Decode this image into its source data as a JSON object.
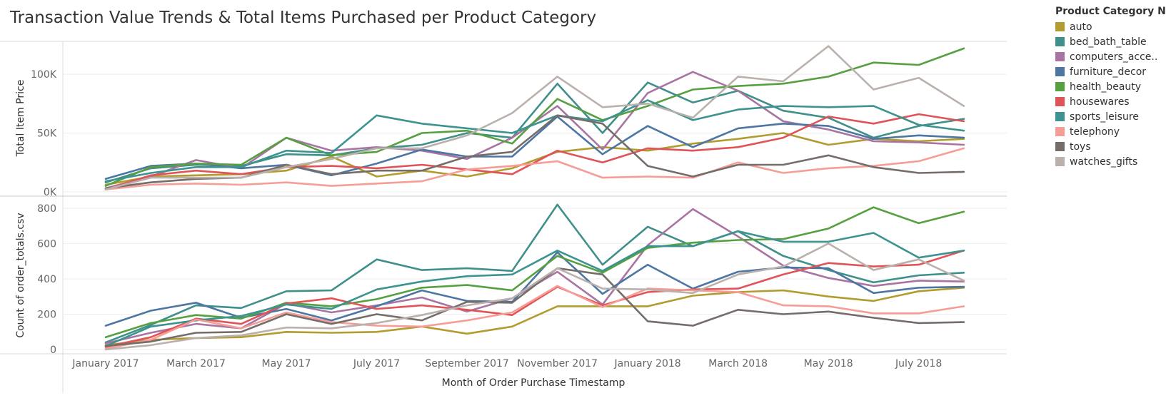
{
  "title": "Transaction Value Trends & Total Items Purchased per Product Category",
  "chart_data": [
    {
      "type": "line",
      "ylabel": "Total Item Price",
      "ytick_labels": [
        "0K",
        "50K",
        "100K"
      ],
      "yticks": [
        0,
        50000,
        100000
      ],
      "ylim": [
        -3000,
        130000
      ],
      "grid": true,
      "x": [
        "2017-01",
        "2017-02",
        "2017-03",
        "2017-04",
        "2017-05",
        "2017-06",
        "2017-07",
        "2017-08",
        "2017-09",
        "2017-10",
        "2017-11",
        "2017-12",
        "2018-01",
        "2018-02",
        "2018-03",
        "2018-04",
        "2018-05",
        "2018-06",
        "2018-07",
        "2018-08"
      ],
      "series": [
        {
          "name": "auto",
          "values": [
            6000,
            13000,
            14000,
            15000,
            18000,
            30000,
            13000,
            18000,
            13000,
            20000,
            34000,
            38000,
            35000,
            41000,
            45000,
            50000,
            40000,
            45000,
            43000,
            45000
          ]
        },
        {
          "name": "bed_bath_table",
          "values": [
            8000,
            20000,
            23000,
            22000,
            32000,
            31000,
            37000,
            40000,
            50000,
            46000,
            92000,
            50000,
            93000,
            76000,
            86000,
            69000,
            63000,
            46000,
            56000,
            62000
          ]
        },
        {
          "name": "computers_accessories",
          "values": [
            3000,
            13000,
            27000,
            20000,
            46000,
            35000,
            38000,
            35000,
            28000,
            46000,
            73000,
            36000,
            84000,
            102000,
            86000,
            60000,
            53000,
            43000,
            42000,
            40000
          ]
        },
        {
          "name": "furniture_decor",
          "values": [
            11000,
            22000,
            24000,
            20000,
            23000,
            14000,
            24000,
            36000,
            30000,
            30000,
            64000,
            32000,
            56000,
            38000,
            54000,
            58000,
            56000,
            45000,
            48000,
            46000
          ]
        },
        {
          "name": "health_beauty",
          "values": [
            5000,
            21000,
            24000,
            23000,
            46000,
            31000,
            34000,
            50000,
            52000,
            41000,
            79000,
            61000,
            73000,
            87000,
            90000,
            92000,
            98000,
            110000,
            108000,
            122000
          ]
        },
        {
          "name": "housewares",
          "values": [
            2000,
            14000,
            18000,
            15000,
            21000,
            22000,
            20000,
            23000,
            19000,
            15000,
            35000,
            25000,
            37000,
            35000,
            38000,
            46000,
            64000,
            58000,
            66000,
            60000
          ]
        },
        {
          "name": "sports_leisure",
          "values": [
            9000,
            16000,
            21000,
            21000,
            35000,
            33000,
            65000,
            58000,
            54000,
            50000,
            65000,
            60000,
            78000,
            61000,
            70000,
            73000,
            72000,
            73000,
            57000,
            52000
          ]
        },
        {
          "name": "telephony",
          "values": [
            2000,
            6000,
            7000,
            6000,
            8000,
            5000,
            7000,
            9000,
            19000,
            22000,
            26000,
            12000,
            13000,
            12000,
            25000,
            16000,
            20000,
            22000,
            26000,
            37000
          ]
        },
        {
          "name": "toys",
          "values": [
            3000,
            8000,
            11000,
            12000,
            23000,
            15000,
            18000,
            18000,
            30000,
            34000,
            65000,
            58000,
            22000,
            13000,
            23000,
            23000,
            31000,
            21000,
            16000,
            17000
          ]
        },
        {
          "name": "watches_gifts",
          "values": [
            2000,
            12000,
            12000,
            12000,
            21000,
            28000,
            37000,
            37000,
            48000,
            67000,
            98000,
            72000,
            75000,
            63000,
            98000,
            94000,
            124000,
            87000,
            97000,
            73000
          ]
        }
      ]
    },
    {
      "type": "line",
      "ylabel": "Count of order_totals.csv",
      "xlabel": "Month of Order Purchase Timestamp",
      "ytick_labels": [
        "0",
        "200",
        "400",
        "600",
        "800"
      ],
      "yticks": [
        0,
        200,
        400,
        600,
        800
      ],
      "ylim": [
        -20,
        860
      ],
      "grid": true,
      "xtick_labels": [
        "January 2017",
        "March 2017",
        "May 2017",
        "July 2017",
        "September 2017",
        "November 2017",
        "January 2018",
        "March 2018",
        "May 2018",
        "July 2018"
      ],
      "x": [
        "2017-01",
        "2017-02",
        "2017-03",
        "2017-04",
        "2017-05",
        "2017-06",
        "2017-07",
        "2017-08",
        "2017-09",
        "2017-10",
        "2017-11",
        "2017-12",
        "2018-01",
        "2018-02",
        "2018-03",
        "2018-04",
        "2018-05",
        "2018-06",
        "2018-07",
        "2018-08"
      ],
      "series": [
        {
          "name": "auto",
          "values": [
            25,
            55,
            65,
            70,
            100,
            95,
            100,
            130,
            90,
            130,
            245,
            245,
            245,
            305,
            325,
            335,
            300,
            275,
            330,
            350
          ]
        },
        {
          "name": "bed_bath_table",
          "values": [
            40,
            140,
            250,
            235,
            330,
            335,
            510,
            450,
            460,
            445,
            820,
            480,
            695,
            585,
            670,
            530,
            450,
            380,
            420,
            435
          ]
        },
        {
          "name": "computers_accessories",
          "values": [
            35,
            95,
            145,
            120,
            260,
            210,
            250,
            295,
            215,
            290,
            440,
            255,
            590,
            795,
            640,
            475,
            405,
            360,
            390,
            385
          ]
        },
        {
          "name": "furniture_decor",
          "values": [
            135,
            220,
            265,
            180,
            230,
            165,
            245,
            335,
            275,
            270,
            550,
            315,
            480,
            345,
            440,
            465,
            460,
            320,
            350,
            355
          ]
        },
        {
          "name": "health_beauty",
          "values": [
            70,
            150,
            195,
            175,
            265,
            245,
            285,
            350,
            365,
            335,
            530,
            435,
            575,
            605,
            620,
            625,
            685,
            805,
            715,
            780
          ]
        },
        {
          "name": "housewares",
          "values": [
            15,
            70,
            175,
            145,
            260,
            290,
            230,
            250,
            225,
            195,
            355,
            250,
            325,
            340,
            345,
            425,
            490,
            470,
            480,
            560
          ]
        },
        {
          "name": "sports_leisure",
          "values": [
            20,
            130,
            165,
            190,
            255,
            230,
            340,
            385,
            415,
            425,
            560,
            445,
            585,
            585,
            670,
            610,
            610,
            660,
            520,
            560
          ]
        },
        {
          "name": "telephony",
          "values": [
            5,
            55,
            170,
            120,
            210,
            155,
            135,
            130,
            165,
            210,
            360,
            240,
            345,
            335,
            325,
            250,
            245,
            205,
            205,
            245
          ]
        },
        {
          "name": "toys",
          "values": [
            20,
            45,
            95,
            100,
            200,
            145,
            200,
            165,
            270,
            265,
            460,
            425,
            160,
            135,
            225,
            200,
            215,
            180,
            150,
            155
          ]
        },
        {
          "name": "watches_gifts",
          "values": [
            0,
            25,
            65,
            80,
            125,
            120,
            150,
            195,
            250,
            290,
            460,
            345,
            340,
            320,
            425,
            470,
            600,
            450,
            510,
            390
          ]
        }
      ]
    }
  ],
  "legend": {
    "title": "Product Category N..",
    "items": [
      {
        "label": "auto",
        "color": "#B29C2F"
      },
      {
        "label": "bed_bath_table",
        "color": "#3F8F8A"
      },
      {
        "label": "computers_acce..",
        "color": "#A874A2"
      },
      {
        "label": "furniture_decor",
        "color": "#4D76A3"
      },
      {
        "label": "health_beauty",
        "color": "#57A042"
      },
      {
        "label": "housewares",
        "color": "#E05458"
      },
      {
        "label": "sports_leisure",
        "color": "#3C938F"
      },
      {
        "label": "telephony",
        "color": "#F59D96"
      },
      {
        "label": "toys",
        "color": "#746D6A"
      },
      {
        "label": "watches_gifts",
        "color": "#BAB0AC"
      }
    ]
  }
}
